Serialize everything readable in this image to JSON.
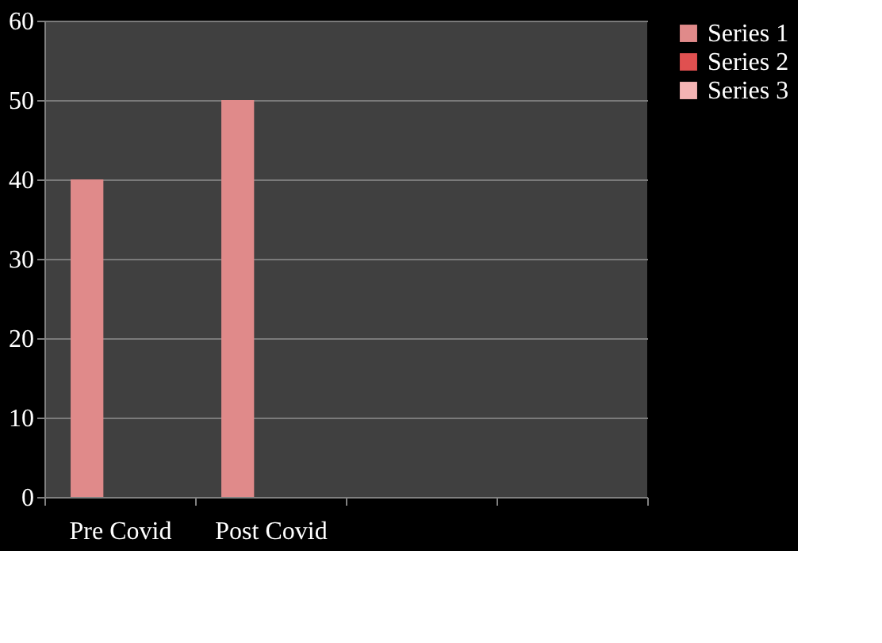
{
  "chart_data": {
    "type": "bar",
    "categories": [
      "Pre Covid",
      "Post Covid",
      null,
      null
    ],
    "series": [
      {
        "name": "Series 1",
        "color": "#e08a8a",
        "values": [
          40,
          50,
          null,
          null
        ]
      },
      {
        "name": "Series 2",
        "color": "#e05050",
        "values": [
          null,
          null,
          null,
          null
        ]
      },
      {
        "name": "Series 3",
        "color": "#f4b4b4",
        "values": [
          null,
          null,
          null,
          null
        ]
      }
    ],
    "ylim": [
      0,
      60
    ],
    "yticks": [
      0,
      10,
      20,
      30,
      40,
      50,
      60
    ],
    "grid": "y",
    "legend": "right"
  }
}
